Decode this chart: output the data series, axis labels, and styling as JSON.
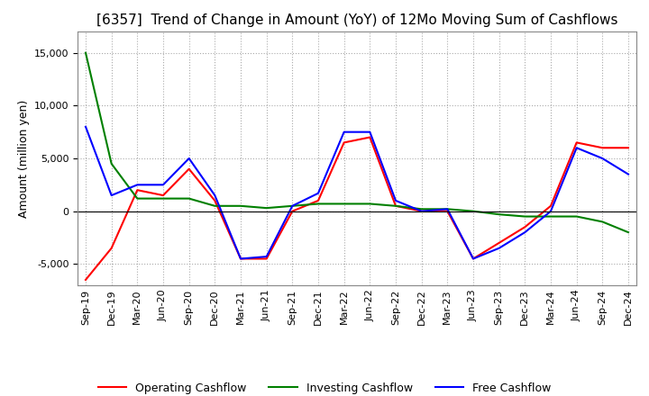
{
  "title": "[6357]  Trend of Change in Amount (YoY) of 12Mo Moving Sum of Cashflows",
  "ylabel": "Amount (million yen)",
  "x_labels": [
    "Sep-19",
    "Dec-19",
    "Mar-20",
    "Jun-20",
    "Sep-20",
    "Dec-20",
    "Mar-21",
    "Jun-21",
    "Sep-21",
    "Dec-21",
    "Mar-22",
    "Jun-22",
    "Sep-22",
    "Dec-22",
    "Mar-23",
    "Jun-23",
    "Sep-23",
    "Dec-23",
    "Mar-24",
    "Jun-24",
    "Sep-24",
    "Dec-24"
  ],
  "operating": [
    -6500,
    -3500,
    2000,
    1500,
    4000,
    1000,
    -4500,
    -4500,
    0,
    1000,
    6500,
    7000,
    500,
    0,
    0,
    -4500,
    -3000,
    -1500,
    500,
    6500,
    6000,
    6000
  ],
  "investing": [
    15000,
    4500,
    1200,
    1200,
    1200,
    500,
    500,
    300,
    500,
    700,
    700,
    700,
    500,
    200,
    200,
    0,
    -300,
    -500,
    -500,
    -500,
    -1000,
    -2000
  ],
  "free": [
    8000,
    1500,
    2500,
    2500,
    5000,
    1500,
    -4500,
    -4300,
    500,
    1700,
    7500,
    7500,
    1000,
    0,
    200,
    -4500,
    -3500,
    -2000,
    0,
    6000,
    5000,
    3500
  ],
  "ylim": [
    -7000,
    17000
  ],
  "yticks": [
    -5000,
    0,
    5000,
    10000,
    15000
  ],
  "operating_color": "#ff0000",
  "investing_color": "#008000",
  "free_color": "#0000ff",
  "bg_color": "#ffffff",
  "plot_bg_color": "#ffffff",
  "grid_color": "#aaaaaa",
  "title_fontsize": 11,
  "label_fontsize": 9,
  "tick_fontsize": 8
}
